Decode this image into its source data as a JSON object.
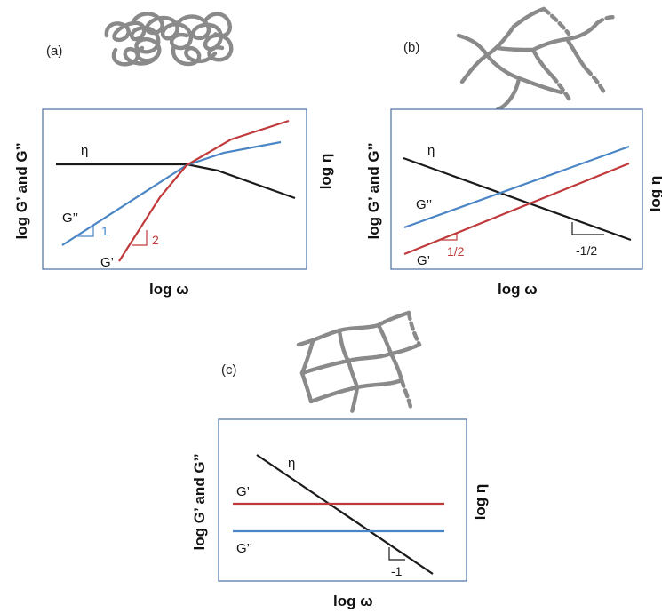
{
  "colors": {
    "eta": "#1a1a1a",
    "g_storage": "#c0393b",
    "g_loss": "#4a86c5",
    "frame": "#4a6fa5",
    "polymer": "#8a8a8a"
  },
  "panels": [
    {
      "id": "a",
      "letter": "(a)",
      "x_axis_title": "log ω",
      "y_left_title": "log G’ and G’’",
      "y_right_title": "log η",
      "curves": {
        "eta": "η",
        "g_storage": "G’",
        "g_loss": "G’’"
      },
      "slopes": {
        "g_loss": "1",
        "g_storage": "2"
      },
      "illustration": "entangled-coil-icon"
    },
    {
      "id": "b",
      "letter": "(b)",
      "x_axis_title": "log ω",
      "y_left_title": "log G’ and G’’",
      "y_right_title": "log η",
      "curves": {
        "eta": "η",
        "g_storage": "G’",
        "g_loss": "G’’"
      },
      "slopes": {
        "g_storage": "1/2",
        "eta": "-1/2"
      },
      "illustration": "branched-chain-icon"
    },
    {
      "id": "c",
      "letter": "(c)",
      "x_axis_title": "log ω",
      "y_left_title": "log G’ and G’’",
      "y_right_title": "log η",
      "curves": {
        "eta": "η",
        "g_storage": "G’",
        "g_loss": "G’’"
      },
      "slopes": {
        "eta": "-1"
      },
      "illustration": "network-icon"
    }
  ]
}
